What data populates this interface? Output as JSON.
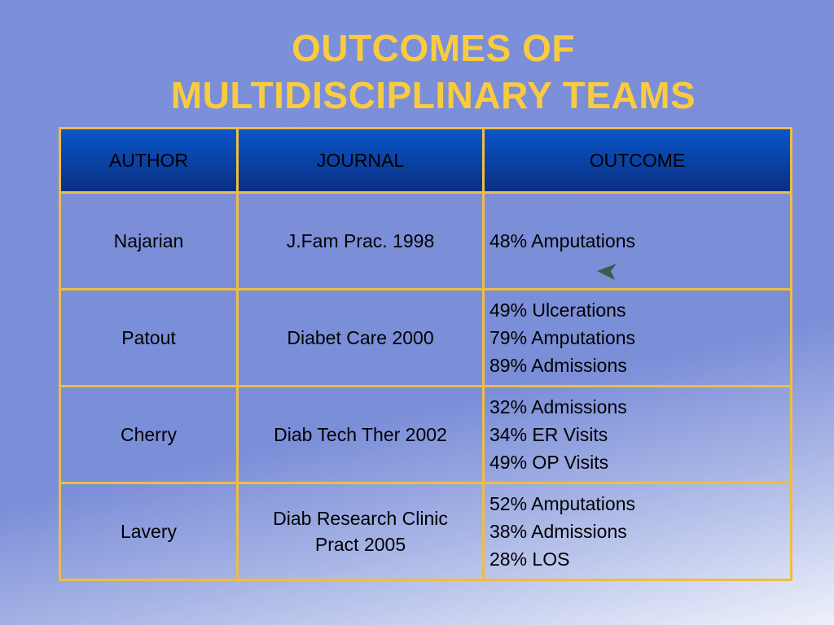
{
  "title": {
    "line1": "OUTCOMES OF",
    "line2": "MULTIDISCIPLINARY TEAMS"
  },
  "table": {
    "headers": [
      "AUTHOR",
      "JOURNAL",
      "OUTCOME"
    ],
    "rows": [
      {
        "author": "Najarian",
        "journal": [
          "J.Fam Prac. 1998"
        ],
        "outcome": [
          "48%  Amputations"
        ]
      },
      {
        "author": "Patout",
        "journal": [
          "Diabet Care 2000"
        ],
        "outcome": [
          "49% Ulcerations",
          "79% Amputations",
          "89% Admissions"
        ]
      },
      {
        "author": "Cherry",
        "journal": [
          "Diab Tech Ther 2002"
        ],
        "outcome": [
          "32% Admissions",
          "34% ER Visits",
          "49% OP Visits"
        ]
      },
      {
        "author": "Lavery",
        "journal": [
          "Diab Research Clinic",
          "Pract 2005"
        ],
        "outcome": [
          "52% Amputations",
          "38% Admissions",
          "28% LOS"
        ]
      }
    ]
  },
  "colors": {
    "title": "#f9cb3f",
    "border": "#eebd45",
    "header_bg": "#0a44aa",
    "arrow": "#3d5a4a"
  },
  "icons": {
    "pointer": "arrow-pointer-icon"
  }
}
